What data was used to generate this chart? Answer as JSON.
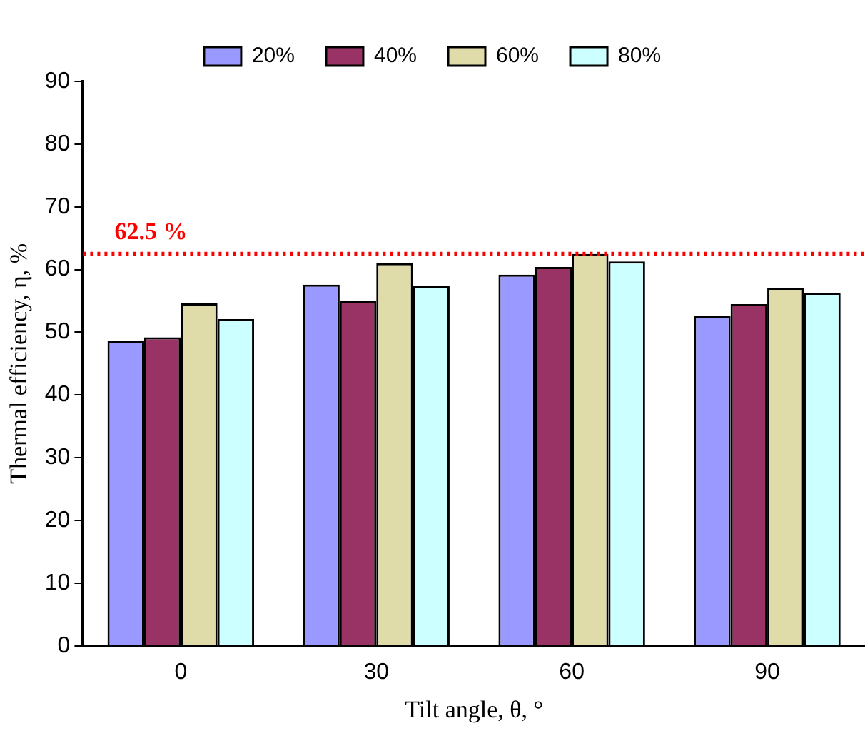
{
  "chart_data": {
    "type": "bar",
    "xlabel": "Tilt angle, θ, °",
    "ylabel": "Thermal efficiency, η, %",
    "categories": [
      "0",
      "30",
      "60",
      "90"
    ],
    "series": [
      {
        "name": "20%",
        "color": "#9999ff",
        "values": [
          48.6,
          57.6,
          59.2,
          52.6
        ]
      },
      {
        "name": "40%",
        "color": "#993366",
        "values": [
          49.2,
          55.0,
          60.4,
          54.5
        ]
      },
      {
        "name": "60%",
        "color": "#e0dcaa",
        "values": [
          54.6,
          61.0,
          62.5,
          57.1
        ]
      },
      {
        "name": "80%",
        "color": "#ccffff",
        "values": [
          52.1,
          57.4,
          61.3,
          56.3
        ]
      }
    ],
    "ylim": [
      0,
      90
    ],
    "yticks": [
      0,
      10,
      20,
      30,
      40,
      50,
      60,
      70,
      80,
      90
    ],
    "grid": false,
    "legend": "top",
    "ref_lines": [
      {
        "axis": "y",
        "value": 62.5,
        "label": "62.5 %",
        "color": "#ff0000",
        "line_style": "dotted"
      }
    ]
  }
}
